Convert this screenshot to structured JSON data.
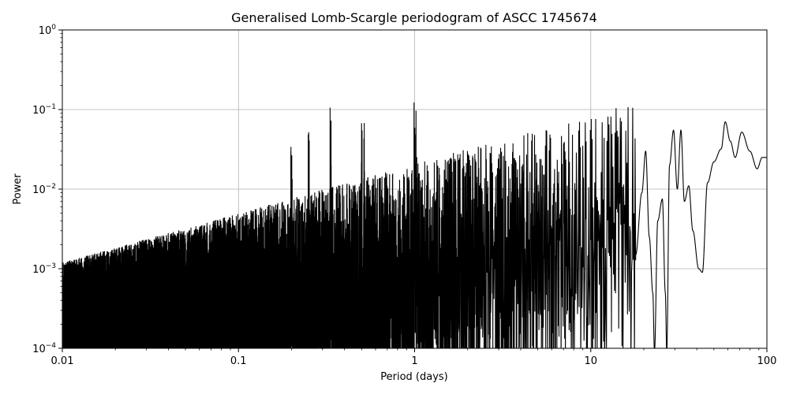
{
  "chart_data": {
    "type": "line",
    "title": "Generalised Lomb-Scargle periodogram of ASCC 1745674",
    "xlabel": "Period (days)",
    "ylabel": "Power",
    "xscale": "log",
    "yscale": "log",
    "xlim": [
      0.01,
      100
    ],
    "ylim": [
      0.0001,
      1
    ],
    "grid": true,
    "x_ticks": [
      {
        "value": 0.01,
        "label": "0.01"
      },
      {
        "value": 0.1,
        "label": "0.1"
      },
      {
        "value": 1,
        "label": "1"
      },
      {
        "value": 10,
        "label": "10"
      },
      {
        "value": 100,
        "label": "100"
      }
    ],
    "y_ticks": [
      {
        "value": 0.0001,
        "base": "10",
        "exp": "−4"
      },
      {
        "value": 0.001,
        "base": "10",
        "exp": "−3"
      },
      {
        "value": 0.01,
        "base": "10",
        "exp": "−2"
      },
      {
        "value": 0.1,
        "base": "10",
        "exp": "−1"
      },
      {
        "value": 1,
        "base": "10",
        "exp": "0"
      }
    ],
    "line_color": "#000000",
    "grid_color": "#b0b0b0",
    "series": [
      {
        "values_note_free": true,
        "peaks": [
          [
            0.2,
            0.045
          ],
          [
            0.25,
            0.06
          ],
          [
            0.333,
            0.13
          ],
          [
            0.5,
            0.14
          ],
          [
            0.52,
            0.09
          ],
          [
            1.0,
            0.16
          ],
          [
            1.02,
            0.12
          ],
          [
            1.5,
            0.05
          ],
          [
            2.0,
            0.055
          ],
          [
            3.0,
            0.05
          ],
          [
            7.3,
            0.08
          ],
          [
            10.8,
            0.06
          ],
          [
            13.5,
            0.045
          ],
          [
            16.5,
            0.04
          ]
        ],
        "smooth_tail": [
          [
            18.0,
            0.0015
          ],
          [
            19.5,
            0.009
          ],
          [
            20.5,
            0.03
          ],
          [
            21.5,
            0.0025
          ],
          [
            22.5,
            0.0005
          ],
          [
            23.0,
            9e-05
          ],
          [
            24.0,
            0.004
          ],
          [
            25.5,
            0.0075
          ],
          [
            26.5,
            0.0005
          ],
          [
            27.0,
            9e-05
          ],
          [
            28.0,
            0.02
          ],
          [
            29.5,
            0.055
          ],
          [
            31.0,
            0.01
          ],
          [
            32.5,
            0.055
          ],
          [
            34.0,
            0.007
          ],
          [
            36.0,
            0.011
          ],
          [
            38.0,
            0.003
          ],
          [
            41.0,
            0.001
          ],
          [
            43.0,
            0.0009
          ],
          [
            46.0,
            0.012
          ],
          [
            50.0,
            0.022
          ],
          [
            55.0,
            0.032
          ],
          [
            58.0,
            0.07
          ],
          [
            62.0,
            0.04
          ],
          [
            66.0,
            0.025
          ],
          [
            72.0,
            0.052
          ],
          [
            80.0,
            0.03
          ],
          [
            88.0,
            0.018
          ],
          [
            94.0,
            0.025
          ],
          [
            100.0,
            0.025
          ]
        ]
      }
    ]
  }
}
